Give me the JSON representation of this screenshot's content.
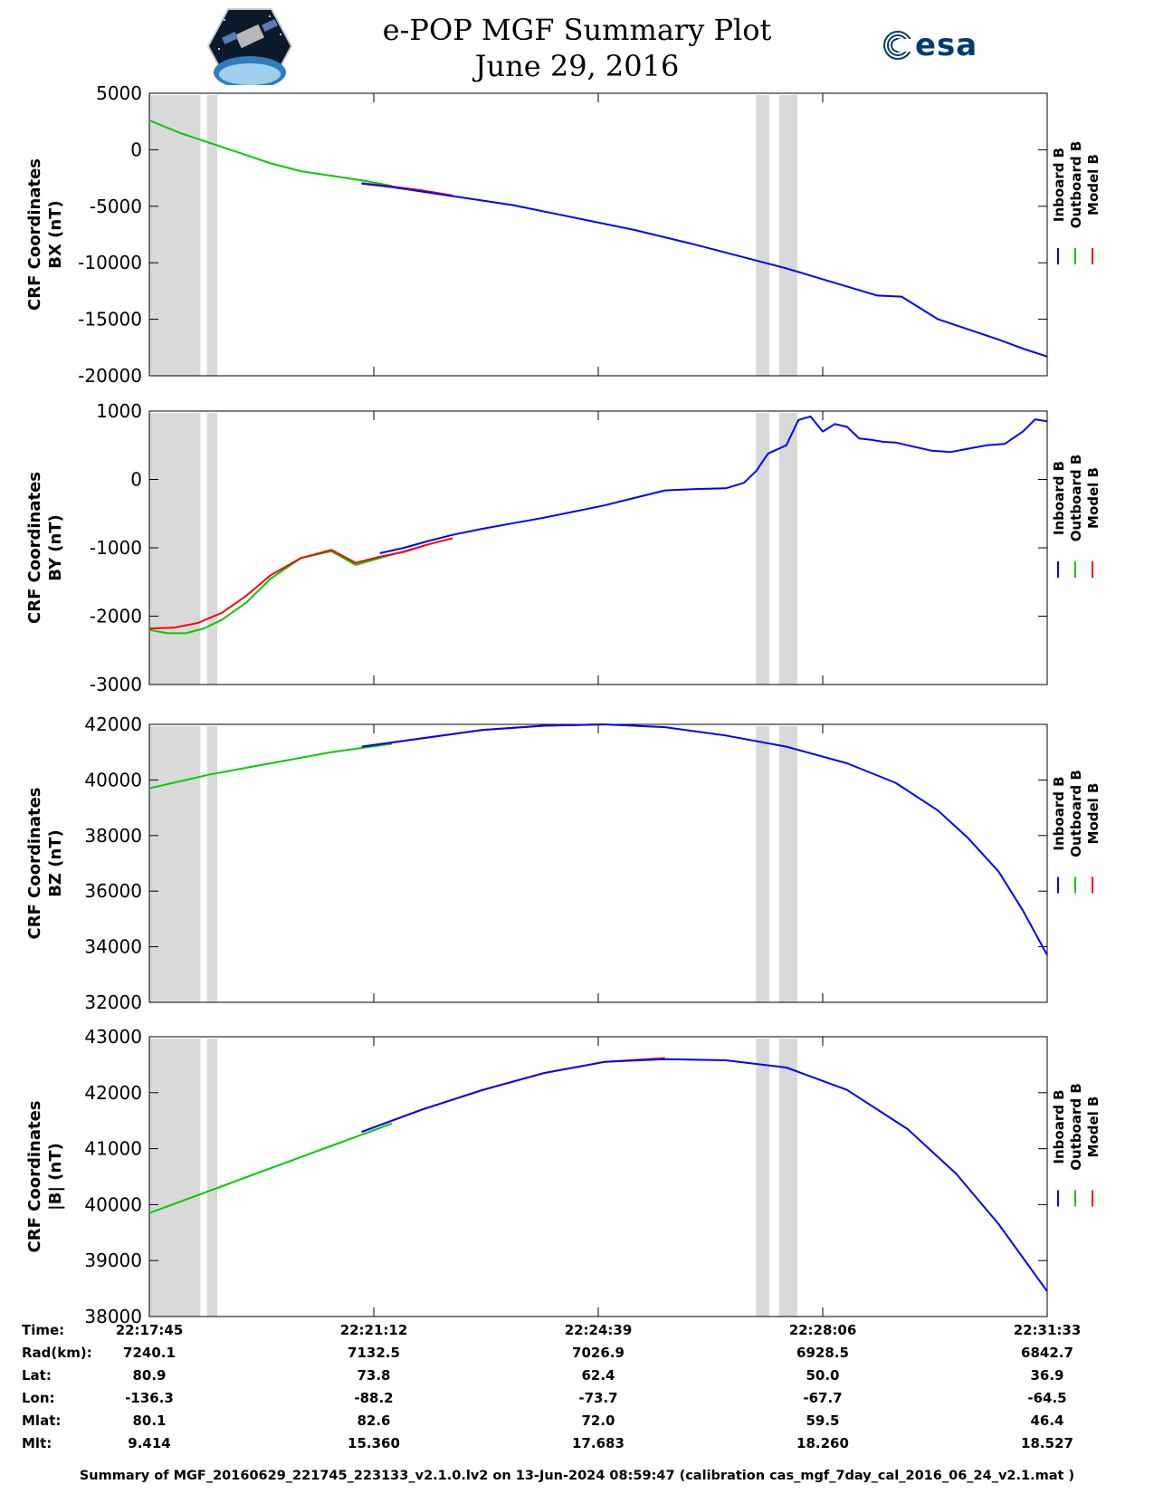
{
  "title": "e-POP MGF Summary Plot",
  "subtitle": "June 29, 2016",
  "logos": {
    "left": "cassiope-mission-logo",
    "right": "esa-logo",
    "right_text": "esa"
  },
  "colors": {
    "inboard": "#0000ff",
    "outboard": "#00cc00",
    "model": "#ff0000",
    "gap": "#d9d9d9"
  },
  "legend": [
    "Inboard B",
    "Outboard B",
    "Model B"
  ],
  "x_ticks": [
    "22:17:45",
    "22:21:12",
    "22:24:39",
    "22:28:06",
    "22:31:33"
  ],
  "chart_data": [
    {
      "type": "line",
      "ylabel": [
        "CRF Coordinates",
        "BX (nT)"
      ],
      "ylim": [
        -20000,
        5000
      ],
      "yticks": [
        "5000",
        "0",
        "-5000",
        "-10000",
        "-15000",
        "-20000"
      ],
      "xlim_minutes": [
        0,
        14.8
      ],
      "gaps_minutes": [
        [
          0,
          0.84
        ],
        [
          0.95,
          1.12
        ],
        [
          10.0,
          10.22
        ],
        [
          10.38,
          10.68
        ]
      ],
      "series": [
        {
          "name": "Outboard B",
          "x": [
            0,
            0.5,
            1.0,
            1.5,
            2.0,
            2.5,
            3.0,
            3.5,
            4.0
          ],
          "y": [
            2600,
            1500,
            600,
            -300,
            -1200,
            -1900,
            -2300,
            -2700,
            -3200
          ]
        },
        {
          "name": "Model B",
          "x": [
            3.5,
            4.0,
            4.5,
            5.0
          ],
          "y": [
            -2950,
            -3250,
            -3600,
            -4050
          ]
        },
        {
          "name": "Inboard B",
          "x": [
            3.5,
            4.0,
            5.0,
            6.0,
            7.0,
            8.0,
            9.0,
            10.0,
            10.5,
            11.0,
            12.0,
            12.4,
            13.0,
            14.0,
            14.4,
            14.8
          ],
          "y": [
            -3000,
            -3300,
            -4100,
            -4900,
            -6000,
            -7100,
            -8400,
            -9800,
            -10500,
            -11300,
            -12900,
            -13000,
            -15000,
            -16800,
            -17600,
            -18300
          ]
        }
      ]
    },
    {
      "type": "line",
      "ylabel": [
        "CRF Coordinates",
        "BY (nT)"
      ],
      "ylim": [
        -3000,
        1000
      ],
      "yticks": [
        "1000",
        "0",
        "-1000",
        "-2000",
        "-3000"
      ],
      "xlim_minutes": [
        0,
        14.8
      ],
      "gaps_minutes": [
        [
          0,
          0.84
        ],
        [
          0.95,
          1.12
        ],
        [
          10.0,
          10.22
        ],
        [
          10.38,
          10.68
        ]
      ],
      "series": [
        {
          "name": "Outboard B",
          "x": [
            0,
            0.3,
            0.6,
            0.9,
            1.2,
            1.6,
            2.0,
            2.5,
            3.0,
            3.4,
            3.8,
            4.2,
            4.6
          ],
          "y": [
            -2200,
            -2250,
            -2250,
            -2180,
            -2050,
            -1800,
            -1450,
            -1150,
            -1050,
            -1250,
            -1150,
            -1050,
            -950
          ]
        },
        {
          "name": "Model B",
          "x": [
            0,
            0.4,
            0.8,
            1.2,
            1.6,
            2.0,
            2.5,
            3.0,
            3.4,
            3.8,
            4.2,
            4.6,
            5.0
          ],
          "y": [
            -2180,
            -2170,
            -2100,
            -1950,
            -1700,
            -1400,
            -1150,
            -1030,
            -1220,
            -1130,
            -1060,
            -950,
            -860
          ]
        },
        {
          "name": "Inboard B",
          "x": [
            3.8,
            4.2,
            4.6,
            5.0,
            5.5,
            6.0,
            6.5,
            7.0,
            7.5,
            8.0,
            8.5,
            9.0,
            9.5,
            9.8,
            10.0,
            10.2,
            10.5,
            10.7,
            10.9,
            11.1,
            11.3,
            11.5,
            11.7,
            11.9,
            12.1,
            12.3,
            12.6,
            12.9,
            13.2,
            13.5,
            13.8,
            14.1,
            14.4,
            14.6,
            14.8
          ],
          "y": [
            -1080,
            -1000,
            -900,
            -810,
            -720,
            -640,
            -560,
            -470,
            -380,
            -270,
            -160,
            -140,
            -130,
            -50,
            120,
            380,
            500,
            870,
            920,
            700,
            810,
            770,
            600,
            580,
            550,
            540,
            480,
            420,
            400,
            450,
            500,
            520,
            700,
            880,
            850
          ]
        }
      ]
    },
    {
      "type": "line",
      "ylabel": [
        "CRF Coordinates",
        "BZ (nT)"
      ],
      "ylim": [
        32000,
        42000
      ],
      "yticks": [
        "42000",
        "40000",
        "38000",
        "36000",
        "34000",
        "32000"
      ],
      "xlim_minutes": [
        0,
        14.8
      ],
      "gaps_minutes": [
        [
          0,
          0.84
        ],
        [
          0.95,
          1.12
        ],
        [
          10.0,
          10.22
        ],
        [
          10.38,
          10.68
        ]
      ],
      "series": [
        {
          "name": "Outboard B",
          "x": [
            0,
            1,
            2,
            3,
            4
          ],
          "y": [
            39700,
            40200,
            40600,
            41000,
            41300
          ]
        },
        {
          "name": "Model B",
          "x": [
            3.5,
            4.5,
            5.5,
            6.5,
            7.5
          ],
          "y": [
            41200,
            41500,
            41800,
            41950,
            42000
          ]
        },
        {
          "name": "Inboard B",
          "x": [
            3.5,
            4.5,
            5.5,
            6.5,
            7.5,
            8.5,
            9.5,
            10.5,
            11.5,
            12.3,
            13.0,
            13.5,
            14.0,
            14.4,
            14.8
          ],
          "y": [
            41200,
            41500,
            41800,
            41950,
            42000,
            41900,
            41600,
            41200,
            40600,
            39900,
            38900,
            37900,
            36700,
            35300,
            33700
          ]
        }
      ]
    },
    {
      "type": "line",
      "ylabel": [
        "CRF Coordinates",
        "|B| (nT)"
      ],
      "ylim": [
        38000,
        43000
      ],
      "yticks": [
        "43000",
        "42000",
        "41000",
        "40000",
        "39000",
        "38000"
      ],
      "xlim_minutes": [
        0,
        14.8
      ],
      "gaps_minutes": [
        [
          0,
          0.84
        ],
        [
          0.95,
          1.12
        ],
        [
          10.0,
          10.22
        ],
        [
          10.38,
          10.68
        ]
      ],
      "series": [
        {
          "name": "Outboard B",
          "x": [
            0,
            1,
            2,
            3,
            4
          ],
          "y": [
            39850,
            40250,
            40650,
            41050,
            41450
          ]
        },
        {
          "name": "Model B",
          "x": [
            3.5,
            4.5,
            5.5,
            6.5,
            7.5,
            8.5
          ],
          "y": [
            41300,
            41700,
            42050,
            42350,
            42550,
            42620
          ]
        },
        {
          "name": "Inboard B",
          "x": [
            3.5,
            4.5,
            5.5,
            6.5,
            7.5,
            8.5,
            9.5,
            10.5,
            11.5,
            12.5,
            13.3,
            14.0,
            14.4,
            14.8
          ],
          "y": [
            41300,
            41700,
            42050,
            42350,
            42550,
            42600,
            42580,
            42450,
            42050,
            41350,
            40550,
            39650,
            39050,
            38450
          ]
        }
      ]
    }
  ],
  "table": {
    "labels": [
      "Time:",
      "Rad(km):",
      "Lat:",
      "Lon:",
      "Mlat:",
      "Mlt:"
    ],
    "columns": [
      [
        "22:17:45",
        "7240.1",
        "80.9",
        "-136.3",
        "80.1",
        "9.414"
      ],
      [
        "22:21:12",
        "7132.5",
        "73.8",
        "-88.2",
        "82.6",
        "15.360"
      ],
      [
        "22:24:39",
        "7026.9",
        "62.4",
        "-73.7",
        "72.0",
        "17.683"
      ],
      [
        "22:28:06",
        "6928.5",
        "50.0",
        "-67.7",
        "59.5",
        "18.260"
      ],
      [
        "22:31:33",
        "6842.7",
        "36.9",
        "-64.5",
        "46.4",
        "18.527"
      ]
    ]
  },
  "footer": "Summary of MGF_20160629_221745_223133_v2.1.0.lv2 on 13-Jun-2024 08:59:47 (calibration cas_mgf_7day_cal_2016_06_24_v2.1.mat )"
}
